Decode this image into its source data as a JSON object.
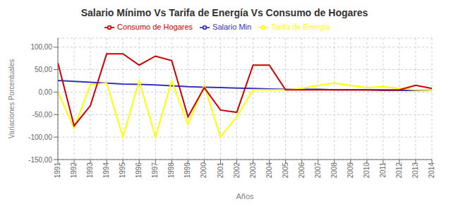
{
  "chart_data": {
    "type": "line",
    "title": "Salario Mínimo Vs Tarifa de Energía Vs Consumo de Hogares",
    "xlabel": "Años",
    "ylabel": "Variaciones Porcentuales",
    "x": [
      1991,
      1992,
      1993,
      1994,
      1995,
      1996,
      1997,
      1998,
      1999,
      2000,
      2001,
      2002,
      2003,
      2004,
      2005,
      2006,
      2007,
      2008,
      2009,
      2010,
      2011,
      2012,
      2013,
      2014
    ],
    "series": [
      {
        "name": "Salario Min",
        "color": "#3333bb",
        "values": [
          26,
          24,
          22,
          20,
          18,
          17,
          16,
          14,
          12,
          11,
          10,
          9,
          8,
          7,
          6,
          6,
          6,
          5,
          5,
          5,
          4,
          4,
          4,
          5
        ]
      },
      {
        "name": "Tarifa de Energía",
        "color": "#ffff00",
        "values": [
          0,
          -80,
          17,
          20,
          -100,
          25,
          -100,
          25,
          -72,
          15,
          -100,
          -55,
          5,
          5,
          5,
          8,
          15,
          20,
          15,
          10,
          12,
          8,
          5,
          5
        ]
      },
      {
        "name": "Consumo de Hogares",
        "color": "#cc0000",
        "values": [
          65,
          -75,
          -30,
          85,
          85,
          60,
          80,
          70,
          -55,
          10,
          -40,
          -45,
          60,
          60,
          5,
          5,
          5,
          5,
          5,
          5,
          5,
          5,
          15,
          8
        ]
      }
    ],
    "xlim": [
      1991,
      2014
    ],
    "xticks": [
      1991,
      1992,
      1993,
      1994,
      1995,
      1996,
      1997,
      1998,
      1999,
      2000,
      2001,
      2002,
      2003,
      2004,
      2005,
      2006,
      2007,
      2008,
      2009,
      2010,
      2011,
      2012,
      2013,
      2014
    ],
    "ylim": [
      -150,
      120
    ],
    "yticks": [
      {
        "value": -150,
        "label": "-150,00"
      },
      {
        "value": -100,
        "label": "-100,00"
      },
      {
        "value": -50,
        "label": "-50,00"
      },
      {
        "value": 0,
        "label": "0,00"
      },
      {
        "value": 50,
        "label": "50,00"
      },
      {
        "value": 100,
        "label": "100,00"
      }
    ],
    "grid": true,
    "legend": "top"
  }
}
